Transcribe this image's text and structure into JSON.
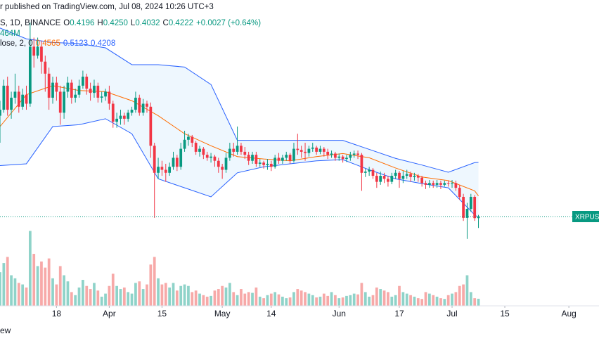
{
  "chart_data": {
    "type": "candlestick",
    "published": "r published on TradingView.com, Jul 08, 2024 10:26 UTC+3",
    "symbol": "S, 1D, BINANCE",
    "legend_items": [
      {
        "key": "O",
        "value": "0.4196"
      },
      {
        "key": "H",
        "value": "0.4250"
      },
      {
        "key": "L",
        "value": "0.4032"
      },
      {
        "key": "C",
        "value": "0.4222"
      }
    ],
    "change": "+0.0027 (+0.64%)",
    "volume_legend": "464M",
    "bb_legend": "lose, 2, 0",
    "bb_values": [
      "0.4565",
      "0.5123",
      "0.4208"
    ],
    "price_label": "XRPUSD",
    "footer": "ew",
    "x": [
      "2024-03-03",
      "2024-03-04",
      "2024-03-05",
      "2024-03-06",
      "2024-03-07",
      "2024-03-08",
      "2024-03-09",
      "2024-03-10",
      "2024-03-11",
      "2024-03-12",
      "2024-03-13",
      "2024-03-14",
      "2024-03-15",
      "2024-03-16",
      "2024-03-17",
      "2024-03-18",
      "2024-03-19",
      "2024-03-20",
      "2024-03-21",
      "2024-03-22",
      "2024-03-23",
      "2024-03-24",
      "2024-03-25",
      "2024-03-26",
      "2024-03-27",
      "2024-03-28",
      "2024-03-29",
      "2024-03-30",
      "2024-03-31",
      "2024-04-01",
      "2024-04-02",
      "2024-04-03",
      "2024-04-04",
      "2024-04-05",
      "2024-04-06",
      "2024-04-07",
      "2024-04-08",
      "2024-04-09",
      "2024-04-10",
      "2024-04-11",
      "2024-04-12",
      "2024-04-13",
      "2024-04-14",
      "2024-04-15",
      "2024-04-16",
      "2024-04-17",
      "2024-04-18",
      "2024-04-19",
      "2024-04-20",
      "2024-04-21",
      "2024-04-22",
      "2024-04-23",
      "2024-04-24",
      "2024-04-25",
      "2024-04-26",
      "2024-04-27",
      "2024-04-28",
      "2024-04-29",
      "2024-04-30",
      "2024-05-01",
      "2024-05-02",
      "2024-05-03",
      "2024-05-04",
      "2024-05-05",
      "2024-05-06",
      "2024-05-07",
      "2024-05-08",
      "2024-05-09",
      "2024-05-10",
      "2024-05-11",
      "2024-05-12",
      "2024-05-13",
      "2024-05-14",
      "2024-05-15",
      "2024-05-16",
      "2024-05-17",
      "2024-05-18",
      "2024-05-19",
      "2024-05-20",
      "2024-05-21",
      "2024-05-22",
      "2024-05-23",
      "2024-05-24",
      "2024-05-25",
      "2024-05-26",
      "2024-05-27",
      "2024-05-28",
      "2024-05-29",
      "2024-05-30",
      "2024-05-31",
      "2024-06-01",
      "2024-06-02",
      "2024-06-03",
      "2024-06-04",
      "2024-06-05",
      "2024-06-06",
      "2024-06-07",
      "2024-06-08",
      "2024-06-09",
      "2024-06-10",
      "2024-06-11",
      "2024-06-12",
      "2024-06-13",
      "2024-06-14",
      "2024-06-15",
      "2024-06-16",
      "2024-06-17",
      "2024-06-18",
      "2024-06-19",
      "2024-06-20",
      "2024-06-21",
      "2024-06-22",
      "2024-06-23",
      "2024-06-24",
      "2024-06-25",
      "2024-06-26",
      "2024-06-27",
      "2024-06-28",
      "2024-06-29",
      "2024-06-30",
      "2024-07-01",
      "2024-07-02",
      "2024-07-03",
      "2024-07-04",
      "2024-07-05",
      "2024-07-06",
      "2024-07-07",
      "2024-07-08"
    ],
    "open": [
      0.59,
      0.6,
      0.64,
      0.6,
      0.62,
      0.63,
      0.605,
      0.625,
      0.61,
      0.705,
      0.69,
      0.705,
      0.68,
      0.66,
      0.62,
      0.645,
      0.63,
      0.595,
      0.63,
      0.645,
      0.62,
      0.625,
      0.64,
      0.655,
      0.635,
      0.628,
      0.64,
      0.62,
      0.622,
      0.63,
      0.61,
      0.58,
      0.585,
      0.59,
      0.585,
      0.595,
      0.6,
      0.62,
      0.595,
      0.61,
      0.605,
      0.54,
      0.495,
      0.505,
      0.5,
      0.495,
      0.505,
      0.52,
      0.505,
      0.535,
      0.55,
      0.555,
      0.545,
      0.53,
      0.535,
      0.525,
      0.52,
      0.522,
      0.515,
      0.505,
      0.5,
      0.52,
      0.535,
      0.53,
      0.54,
      0.53,
      0.525,
      0.515,
      0.525,
      0.51,
      0.512,
      0.508,
      0.51,
      0.505,
      0.52,
      0.515,
      0.52,
      0.525,
      0.515,
      0.535,
      0.533,
      0.53,
      0.528,
      0.535,
      0.537,
      0.53,
      0.535,
      0.53,
      0.525,
      0.527,
      0.52,
      0.522,
      0.518,
      0.52,
      0.525,
      0.527,
      0.525,
      0.495,
      0.497,
      0.5,
      0.49,
      0.48,
      0.49,
      0.485,
      0.48,
      0.49,
      0.495,
      0.485,
      0.49,
      0.493,
      0.488,
      0.49,
      0.487,
      0.478,
      0.475,
      0.478,
      0.475,
      0.478,
      0.475,
      0.478,
      0.477,
      0.478,
      0.47,
      0.455,
      0.42,
      0.435,
      0.455,
      0.4196
    ],
    "high": [
      0.615,
      0.65,
      0.655,
      0.63,
      0.66,
      0.64,
      0.635,
      0.64,
      0.745,
      0.72,
      0.72,
      0.715,
      0.69,
      0.67,
      0.655,
      0.655,
      0.64,
      0.64,
      0.655,
      0.65,
      0.635,
      0.65,
      0.665,
      0.66,
      0.645,
      0.65,
      0.645,
      0.63,
      0.635,
      0.64,
      0.615,
      0.595,
      0.6,
      0.595,
      0.6,
      0.605,
      0.63,
      0.625,
      0.618,
      0.615,
      0.612,
      0.545,
      0.52,
      0.515,
      0.51,
      0.512,
      0.53,
      0.525,
      0.545,
      0.565,
      0.56,
      0.558,
      0.548,
      0.54,
      0.538,
      0.53,
      0.528,
      0.525,
      0.52,
      0.51,
      0.528,
      0.545,
      0.545,
      0.572,
      0.545,
      0.538,
      0.53,
      0.53,
      0.53,
      0.518,
      0.515,
      0.518,
      0.515,
      0.525,
      0.528,
      0.525,
      0.53,
      0.528,
      0.545,
      0.56,
      0.54,
      0.545,
      0.54,
      0.545,
      0.54,
      0.54,
      0.538,
      0.535,
      0.532,
      0.53,
      0.527,
      0.525,
      0.525,
      0.53,
      0.532,
      0.532,
      0.528,
      0.502,
      0.505,
      0.503,
      0.495,
      0.497,
      0.495,
      0.49,
      0.495,
      0.5,
      0.498,
      0.498,
      0.5,
      0.497,
      0.495,
      0.493,
      0.49,
      0.482,
      0.483,
      0.482,
      0.483,
      0.482,
      0.482,
      0.482,
      0.483,
      0.482,
      0.475,
      0.46,
      0.445,
      0.46,
      0.458,
      0.425
    ],
    "low": [
      0.545,
      0.595,
      0.59,
      0.585,
      0.61,
      0.595,
      0.6,
      0.6,
      0.605,
      0.67,
      0.685,
      0.66,
      0.63,
      0.6,
      0.61,
      0.615,
      0.575,
      0.585,
      0.62,
      0.61,
      0.612,
      0.62,
      0.635,
      0.625,
      0.615,
      0.62,
      0.612,
      0.612,
      0.615,
      0.6,
      0.57,
      0.57,
      0.575,
      0.575,
      0.58,
      0.59,
      0.595,
      0.59,
      0.59,
      0.595,
      0.52,
      0.42,
      0.485,
      0.49,
      0.48,
      0.49,
      0.5,
      0.498,
      0.5,
      0.53,
      0.54,
      0.538,
      0.525,
      0.522,
      0.518,
      0.515,
      0.512,
      0.505,
      0.495,
      0.485,
      0.495,
      0.515,
      0.522,
      0.525,
      0.525,
      0.518,
      0.508,
      0.51,
      0.505,
      0.505,
      0.502,
      0.5,
      0.498,
      0.502,
      0.51,
      0.51,
      0.515,
      0.51,
      0.512,
      0.525,
      0.52,
      0.515,
      0.522,
      0.53,
      0.525,
      0.526,
      0.522,
      0.518,
      0.52,
      0.515,
      0.515,
      0.512,
      0.513,
      0.515,
      0.52,
      0.518,
      0.465,
      0.488,
      0.49,
      0.485,
      0.47,
      0.475,
      0.478,
      0.472,
      0.476,
      0.485,
      0.47,
      0.478,
      0.485,
      0.48,
      0.482,
      0.48,
      0.472,
      0.468,
      0.47,
      0.47,
      0.47,
      0.468,
      0.472,
      0.472,
      0.47,
      0.465,
      0.45,
      0.415,
      0.385,
      0.43,
      0.415,
      0.4032
    ],
    "close": [
      0.6,
      0.64,
      0.6,
      0.62,
      0.63,
      0.605,
      0.625,
      0.61,
      0.705,
      0.69,
      0.705,
      0.68,
      0.66,
      0.62,
      0.645,
      0.63,
      0.595,
      0.63,
      0.645,
      0.62,
      0.625,
      0.64,
      0.655,
      0.635,
      0.628,
      0.64,
      0.62,
      0.622,
      0.63,
      0.61,
      0.58,
      0.585,
      0.59,
      0.585,
      0.595,
      0.6,
      0.62,
      0.595,
      0.61,
      0.605,
      0.54,
      0.495,
      0.505,
      0.5,
      0.495,
      0.505,
      0.52,
      0.505,
      0.535,
      0.55,
      0.555,
      0.545,
      0.53,
      0.535,
      0.525,
      0.52,
      0.522,
      0.515,
      0.505,
      0.5,
      0.52,
      0.535,
      0.53,
      0.54,
      0.53,
      0.525,
      0.515,
      0.525,
      0.51,
      0.512,
      0.508,
      0.51,
      0.505,
      0.52,
      0.515,
      0.52,
      0.525,
      0.515,
      0.535,
      0.533,
      0.53,
      0.528,
      0.535,
      0.537,
      0.53,
      0.535,
      0.53,
      0.525,
      0.527,
      0.52,
      0.522,
      0.518,
      0.52,
      0.525,
      0.527,
      0.525,
      0.495,
      0.497,
      0.5,
      0.49,
      0.48,
      0.49,
      0.485,
      0.48,
      0.49,
      0.495,
      0.485,
      0.49,
      0.493,
      0.488,
      0.49,
      0.487,
      0.478,
      0.475,
      0.478,
      0.475,
      0.478,
      0.475,
      0.478,
      0.477,
      0.478,
      0.47,
      0.455,
      0.42,
      0.435,
      0.455,
      0.4196,
      0.4222
    ],
    "volume": [
      2200,
      2800,
      3200,
      2000,
      1800,
      1500,
      1400,
      1200,
      4900,
      3400,
      2600,
      2900,
      2500,
      3100,
      1800,
      1400,
      2600,
      2000,
      1600,
      900,
      700,
      1200,
      1700,
      1300,
      1100,
      1500,
      1000,
      600,
      800,
      1300,
      2100,
      1300,
      1100,
      1200,
      900,
      800,
      1500,
      1600,
      1100,
      1400,
      2700,
      3200,
      1800,
      1400,
      1500,
      1200,
      1500,
      1000,
      1300,
      1400,
      1300,
      900,
      1000,
      800,
      700,
      600,
      650,
      1000,
      1100,
      1300,
      1200,
      1500,
      900,
      700,
      1100,
      800,
      900,
      850,
      1200,
      600,
      500,
      700,
      800,
      900,
      750,
      600,
      500,
      550,
      900,
      1100,
      1000,
      900,
      800,
      700,
      550,
      600,
      800,
      650,
      900,
      700,
      500,
      550,
      650,
      700,
      800,
      750,
      1500,
      900,
      600,
      700,
      1200,
      1100,
      1000,
      900,
      600,
      700,
      1300,
      900,
      800,
      700,
      600,
      500,
      450,
      900,
      800,
      700,
      600,
      500,
      450,
      700,
      800,
      900,
      1300,
      1400,
      2000,
      900,
      500,
      464
    ],
    "bands": {
      "dates": [
        "2024-03-03",
        "2024-03-10",
        "2024-03-17",
        "2024-03-24",
        "2024-03-31",
        "2024-04-07",
        "2024-04-14",
        "2024-04-21",
        "2024-04-28",
        "2024-05-05",
        "2024-05-12",
        "2024-05-19",
        "2024-05-26",
        "2024-06-02",
        "2024-06-09",
        "2024-06-16",
        "2024-06-23",
        "2024-06-30",
        "2024-07-07",
        "2024-07-08"
      ],
      "upper": [
        0.736,
        0.718,
        0.712,
        0.71,
        0.703,
        0.675,
        0.675,
        0.671,
        0.642,
        0.549,
        0.549,
        0.549,
        0.549,
        0.549,
        0.534,
        0.519,
        0.508,
        0.496,
        0.512,
        0.5123
      ],
      "middle": [
        0.572,
        0.625,
        0.64,
        0.632,
        0.63,
        0.615,
        0.59,
        0.56,
        0.54,
        0.522,
        0.518,
        0.515,
        0.522,
        0.527,
        0.52,
        0.503,
        0.488,
        0.482,
        0.465,
        0.4565
      ],
      "lower": [
        0.507,
        0.51,
        0.572,
        0.575,
        0.585,
        0.56,
        0.485,
        0.47,
        0.455,
        0.495,
        0.505,
        0.51,
        0.515,
        0.517,
        0.5,
        0.485,
        0.477,
        0.47,
        0.425,
        0.4208
      ]
    },
    "colors": {
      "up": "#089981",
      "down": "#f23645",
      "up_volume": "#8fd3c9",
      "down_volume": "#f7a9a8",
      "band": "#2962ff",
      "band_fill": "#2196f3",
      "basis": "#ff6d00"
    },
    "xlim": [
      "2024-03-03",
      "2024-08-09"
    ],
    "ylim": [
      0.2736,
      0.7826
    ],
    "y2lim": [
      0,
      20000
    ],
    "xticks": [
      {
        "value": "2024-03-18",
        "label": "18"
      },
      {
        "value": "2024-04-01",
        "label": "Apr"
      },
      {
        "value": "2024-04-15",
        "label": "15"
      },
      {
        "value": "2024-05-01",
        "label": "May"
      },
      {
        "value": "2024-05-14",
        "label": "14"
      },
      {
        "value": "2024-06-01",
        "label": "Jun"
      },
      {
        "value": "2024-06-17",
        "label": "17"
      },
      {
        "value": "2024-07-01",
        "label": "Jul"
      },
      {
        "value": "2024-07-15",
        "label": "15"
      },
      {
        "value": "2024-08-01",
        "label": "Aug"
      }
    ]
  }
}
